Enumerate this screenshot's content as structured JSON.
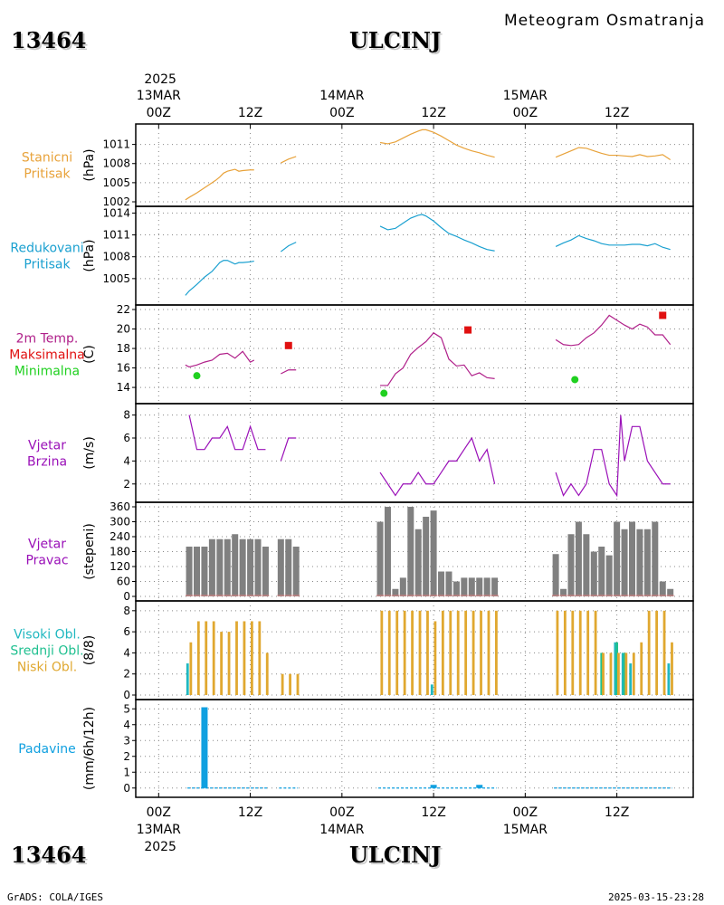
{
  "header": {
    "station_id": "13464",
    "station_name": "ULCINJ",
    "subtitle": "Meteogram Osmatranja"
  },
  "footer": {
    "station_id": "13464",
    "station_name": "ULCINJ",
    "credit": "GrADS: COLA/IGES",
    "timestamp": "2025-03-15-23:28"
  },
  "time_axis": {
    "year": "2025",
    "ticks": [
      {
        "hour": 0,
        "label": "00Z",
        "date": "13MAR"
      },
      {
        "hour": 12,
        "label": "12Z",
        "date": ""
      },
      {
        "hour": 24,
        "label": "00Z",
        "date": "14MAR"
      },
      {
        "hour": 36,
        "label": "12Z",
        "date": ""
      },
      {
        "hour": 48,
        "label": "00Z",
        "date": "15MAR"
      },
      {
        "hour": 60,
        "label": "12Z",
        "date": ""
      }
    ],
    "range_hours": [
      -3,
      70
    ]
  },
  "colors": {
    "station_pressure": "#e8a23a",
    "reduced_pressure": "#1aa0d0",
    "temperature": "#b0208a",
    "tmax": "#e01010",
    "tmin": "#20d020",
    "wind": "#9a10b8",
    "wind_dir": "#808080",
    "high_cloud": "#20b8c0",
    "mid_cloud": "#20c090",
    "low_cloud": "#e0a830",
    "precip": "#10a0e0"
  },
  "chart_data": [
    {
      "type": "line",
      "key": "station_pressure",
      "labels": [
        "Stanicni",
        "Pritisak"
      ],
      "ylabel": "(hPa)",
      "ylim": [
        1002,
        1013.5
      ],
      "yticks": [
        1002,
        1005,
        1008,
        1011
      ],
      "x": [
        3.5,
        4,
        5,
        6,
        7,
        7.5,
        8,
        8.5,
        9,
        10,
        10.5,
        11,
        12,
        12.5,
        16,
        17,
        18,
        29,
        30,
        31,
        32,
        33,
        34,
        34.5,
        35,
        36,
        37,
        38,
        39,
        40,
        41,
        42,
        43,
        44,
        52,
        53,
        54,
        55,
        56,
        57,
        58,
        59,
        60,
        61,
        62,
        63,
        64,
        65,
        66,
        67
      ],
      "y": [
        1002.3,
        1002.7,
        1003.4,
        1004.2,
        1005.0,
        1005.4,
        1005.9,
        1006.5,
        1006.8,
        1007.1,
        1006.8,
        1006.9,
        1007.0,
        1007.0,
        1008.1,
        1008.7,
        1009.1,
        1011.3,
        1011.1,
        1011.4,
        1012.0,
        1012.6,
        1013.1,
        1013.3,
        1013.3,
        1012.9,
        1012.3,
        1011.6,
        1010.9,
        1010.4,
        1010.0,
        1009.7,
        1009.3,
        1009.0,
        1009.0,
        1009.5,
        1010.0,
        1010.5,
        1010.4,
        1010.0,
        1009.6,
        1009.3,
        1009.3,
        1009.2,
        1009.1,
        1009.4,
        1009.1,
        1009.2,
        1009.4,
        1008.6
      ],
      "gaps_after": [
        12.5,
        18,
        44
      ]
    },
    {
      "type": "line",
      "key": "reduced_pressure",
      "labels": [
        "Redukovani",
        "Pritisak"
      ],
      "ylabel": "(hPa)",
      "ylim": [
        1002,
        1014.3
      ],
      "yticks": [
        1005,
        1008,
        1011,
        1014
      ],
      "x": [
        3.5,
        4,
        5,
        6,
        7,
        7.5,
        8,
        8.5,
        9,
        10,
        10.5,
        11,
        12,
        12.5,
        16,
        17,
        18,
        29,
        30,
        31,
        32,
        33,
        34,
        34.5,
        35,
        36,
        37,
        38,
        39,
        40,
        41,
        42,
        43,
        44,
        52,
        53,
        54,
        55,
        56,
        57,
        58,
        59,
        60,
        61,
        62,
        63,
        64,
        65,
        66,
        67
      ],
      "y": [
        1002.7,
        1003.3,
        1004.2,
        1005.2,
        1006.0,
        1006.6,
        1007.2,
        1007.5,
        1007.5,
        1007.0,
        1007.2,
        1007.2,
        1007.3,
        1007.4,
        1008.7,
        1009.5,
        1010.0,
        1012.2,
        1011.7,
        1011.9,
        1012.6,
        1013.3,
        1013.7,
        1013.8,
        1013.6,
        1012.9,
        1012.0,
        1011.2,
        1010.8,
        1010.3,
        1009.9,
        1009.4,
        1009.0,
        1008.8,
        1009.4,
        1009.9,
        1010.3,
        1010.9,
        1010.5,
        1010.2,
        1009.8,
        1009.6,
        1009.6,
        1009.6,
        1009.7,
        1009.7,
        1009.5,
        1009.8,
        1009.3,
        1009.0
      ],
      "gaps_after": [
        12.5,
        18,
        44
      ]
    },
    {
      "type": "line",
      "key": "temperature",
      "labels": [
        "2m Temp.",
        "Maksimalna",
        "Minimalna"
      ],
      "ylabel": "(C)",
      "ylim": [
        12.8,
        22
      ],
      "yticks": [
        14,
        16,
        18,
        20,
        22
      ],
      "x": [
        3.5,
        4,
        5,
        6,
        7,
        8,
        9,
        10,
        11,
        12,
        12.5,
        16,
        17,
        18,
        29,
        30,
        31,
        32,
        33,
        34,
        35,
        36,
        37,
        38,
        39,
        40,
        41,
        42,
        43,
        44,
        52,
        53,
        54,
        55,
        56,
        57,
        58,
        59,
        60,
        61,
        62,
        63,
        64,
        65,
        66,
        67
      ],
      "y": [
        16.3,
        16.1,
        16.3,
        16.6,
        16.8,
        17.4,
        17.5,
        17.0,
        17.7,
        16.6,
        16.8,
        15.4,
        15.8,
        15.8,
        14.2,
        14.2,
        15.4,
        16.0,
        17.4,
        18.1,
        18.7,
        19.6,
        19.1,
        16.9,
        16.2,
        16.3,
        15.2,
        15.5,
        15.0,
        14.9,
        18.9,
        18.4,
        18.3,
        18.4,
        19.1,
        19.6,
        20.4,
        21.4,
        20.9,
        20.4,
        20.0,
        20.5,
        20.2,
        19.4,
        19.4,
        18.4
      ],
      "gaps_after": [
        12.5,
        18,
        44
      ],
      "tmax_points": [
        {
          "x": 17,
          "y": 18.3
        },
        {
          "x": 40.5,
          "y": 19.9
        },
        {
          "x": 66,
          "y": 21.4
        }
      ],
      "tmin_points": [
        {
          "x": 5,
          "y": 15.2
        },
        {
          "x": 29.5,
          "y": 13.4
        },
        {
          "x": 54.5,
          "y": 14.8
        }
      ]
    },
    {
      "type": "line",
      "key": "wind_speed",
      "labels": [
        "Vjetar",
        "Brzina"
      ],
      "ylabel": "(m/s)",
      "ylim": [
        0.8,
        8.6
      ],
      "yticks": [
        2,
        4,
        6,
        8
      ],
      "x": [
        4,
        5,
        6,
        7,
        8,
        9,
        10,
        11,
        12,
        13,
        14,
        16,
        17,
        18,
        29,
        30,
        31,
        32,
        33,
        34,
        35,
        36,
        37,
        38,
        39,
        40,
        41,
        42,
        43,
        44,
        52,
        53,
        54,
        55,
        56,
        57,
        58,
        59,
        60,
        60.5,
        61,
        62,
        63,
        64,
        65,
        66,
        67
      ],
      "y": [
        8,
        5,
        5,
        6,
        6,
        7,
        5,
        5,
        7,
        5,
        5,
        4,
        6,
        6,
        3,
        2,
        1,
        2,
        2,
        3,
        2,
        2,
        3,
        4,
        4,
        5,
        6,
        4,
        5,
        2,
        3,
        1,
        2,
        1,
        2,
        5,
        5,
        2,
        1,
        8,
        4,
        7,
        7,
        4,
        3,
        2,
        2
      ],
      "gaps_after": [
        14,
        18,
        44
      ]
    },
    {
      "type": "bar",
      "key": "wind_direction",
      "labels": [
        "Vjetar",
        "Pravac"
      ],
      "ylabel": "(stepeni)",
      "ylim": [
        0,
        360
      ],
      "yticks": [
        0,
        60,
        120,
        180,
        240,
        300,
        360
      ],
      "x": [
        4,
        5,
        6,
        7,
        8,
        9,
        10,
        11,
        12,
        13,
        14,
        16,
        17,
        18,
        29,
        30,
        31,
        32,
        33,
        34,
        35,
        36,
        37,
        38,
        39,
        40,
        41,
        42,
        43,
        44,
        52,
        53,
        54,
        55,
        56,
        57,
        58,
        59,
        60,
        61,
        62,
        63,
        64,
        65,
        66,
        67
      ],
      "values": [
        200,
        200,
        200,
        230,
        230,
        230,
        250,
        230,
        230,
        230,
        200,
        230,
        230,
        200,
        300,
        360,
        30,
        75,
        360,
        270,
        320,
        345,
        100,
        100,
        60,
        75,
        75,
        75,
        75,
        75,
        170,
        30,
        250,
        300,
        250,
        180,
        200,
        165,
        300,
        270,
        300,
        270,
        270,
        300,
        60,
        30
      ],
      "calm_marks": true
    },
    {
      "type": "bar",
      "key": "clouds",
      "labels": [
        "Visoki Obl.",
        "Srednji Obl.",
        "Niski Obl."
      ],
      "ylabel": "(8/8)",
      "ylim": [
        0,
        8.5
      ],
      "yticks": [
        0,
        2,
        4,
        6,
        8
      ],
      "x": [
        4,
        5,
        6,
        7,
        8,
        9,
        10,
        11,
        12,
        13,
        14,
        16,
        17,
        18,
        29,
        30,
        31,
        32,
        33,
        34,
        35,
        36,
        37,
        38,
        39,
        40,
        41,
        42,
        43,
        44,
        52,
        53,
        54,
        55,
        56,
        57,
        58,
        59,
        60,
        61,
        62,
        63,
        64,
        65,
        66,
        67
      ],
      "series": [
        {
          "name": "Visoki Obl.",
          "values": [
            3,
            0,
            0,
            0,
            0,
            0,
            0,
            0,
            0,
            0,
            0,
            0,
            0,
            0,
            0,
            0,
            0,
            0,
            0,
            0,
            0,
            1,
            0,
            0,
            0,
            0,
            0,
            0,
            0,
            0,
            0,
            0,
            0,
            0,
            0,
            0,
            0,
            0,
            5,
            4,
            3,
            0,
            0,
            0,
            0,
            3
          ]
        },
        {
          "name": "Srednji Obl.",
          "values": [
            0,
            0,
            0,
            0,
            0,
            0,
            0,
            0,
            0,
            0,
            0,
            0,
            0,
            0,
            0,
            0,
            0,
            0,
            0,
            0,
            0,
            0,
            0,
            0,
            0,
            0,
            0,
            0,
            0,
            0,
            0,
            0,
            0,
            0,
            0,
            0,
            4,
            0,
            5,
            4,
            0,
            0,
            0,
            0,
            0,
            0
          ]
        },
        {
          "name": "Niski Obl.",
          "values": [
            5,
            7,
            7,
            7,
            6,
            6,
            7,
            7,
            7,
            7,
            4,
            2,
            2,
            2,
            8,
            8,
            8,
            8,
            8,
            8,
            8,
            7,
            8,
            8,
            8,
            8,
            8,
            8,
            8,
            8,
            8,
            8,
            8,
            8,
            8,
            8,
            4,
            4,
            4,
            4,
            4,
            5,
            8,
            8,
            8,
            5
          ]
        }
      ]
    },
    {
      "type": "bar",
      "key": "precipitation",
      "labels": [
        "Padavine"
      ],
      "ylabel": "(mm/6h/12h)",
      "ylim": [
        -0.3,
        5.3
      ],
      "yticks": [
        0,
        1,
        2,
        3,
        4,
        5
      ],
      "x": [
        6,
        36,
        42
      ],
      "values": [
        5.1,
        0.2,
        0.2
      ],
      "zero_segments": [
        [
          4,
          14
        ],
        [
          16,
          18
        ],
        [
          29,
          44
        ],
        [
          52,
          67
        ]
      ]
    }
  ]
}
